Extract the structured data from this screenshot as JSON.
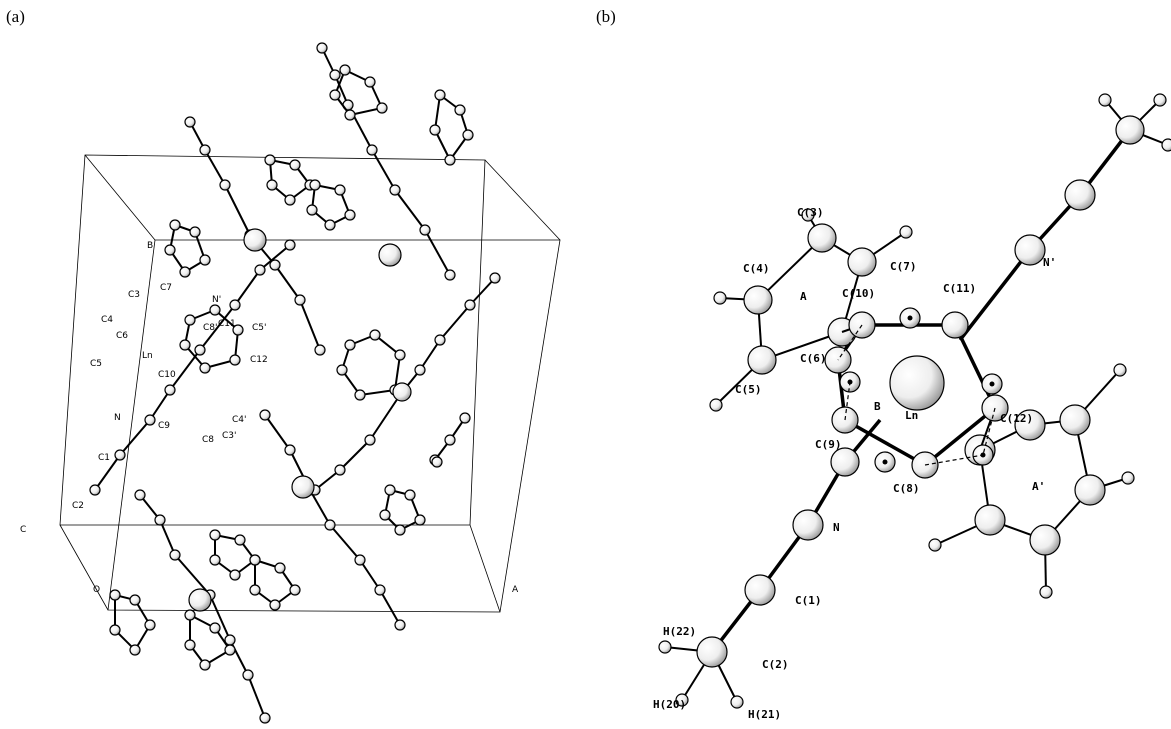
{
  "panels": [
    {
      "label": "(a)",
      "atom_labels": [
        "B",
        "C3",
        "C7",
        "N'",
        "C4",
        "C6",
        "C5",
        "Ln",
        "C8'",
        "C11",
        "C5'",
        "C10",
        "C12",
        "N",
        "C1",
        "C9",
        "C8",
        "C3'",
        "C4'",
        "C2",
        "C",
        "O",
        "A"
      ]
    },
    {
      "label": "(b)",
      "atom_labels": [
        "C(3)",
        "C(4)",
        "C(7)",
        "A",
        "C(10)",
        "C(11)",
        "N'",
        "C(6)",
        "B",
        "C(5)",
        "C(12)",
        "Ln",
        "C(9)",
        "C(8)",
        "A'",
        "N",
        "C(1)",
        "H(22)",
        "C(2)",
        "H(20)",
        "H(21)"
      ]
    }
  ]
}
